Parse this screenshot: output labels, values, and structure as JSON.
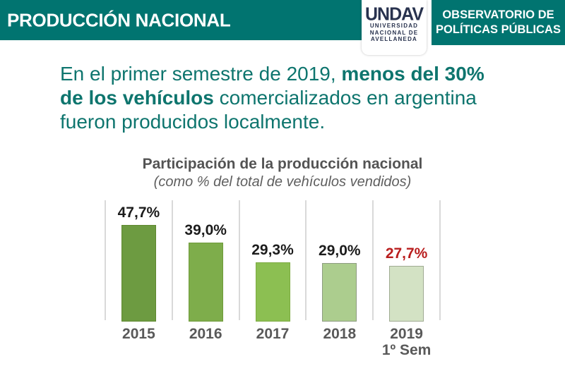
{
  "colors": {
    "teal": "#017470",
    "headline_teal": "#0e756e",
    "gridline": "#d9d9d9"
  },
  "header": {
    "title": "PRODUCCIÓN NACIONAL",
    "observatory_line1": "OBSERVATORIO DE",
    "observatory_line2": "POLÍTICAS PÚBLICAS",
    "logo": {
      "acronym": "UNDAV",
      "line1": "UNIVERSIDAD",
      "line2": "NACIONAL DE",
      "line3": "AVELLANEDA"
    }
  },
  "headline": {
    "part1": "En el primer semestre de 2019, ",
    "part2_bold": "menos del 30% de los vehículos",
    "part3": " comercializados en argentina fueron producidos localmente."
  },
  "chart_data": {
    "type": "bar",
    "title": "Participación de la producción nacional",
    "subtitle": "(como % del total de vehículos vendidos)",
    "categories": [
      "2015",
      "2016",
      "2017",
      "2018",
      "2019"
    ],
    "category_sublabels": [
      "",
      "",
      "",
      "",
      "1º Sem"
    ],
    "values": [
      47.7,
      39.0,
      29.3,
      29.0,
      27.7
    ],
    "value_labels": [
      "47,7%",
      "39,0%",
      "29,3%",
      "29,0%",
      "27,7%"
    ],
    "bar_colors": [
      "#6d9b41",
      "#7ead4b",
      "#8cbf52",
      "#accd8e",
      "#d3e2c4"
    ],
    "bar_border_colors": [
      "#5e882f",
      "#6f9a3a",
      "#7cab41",
      "#8d9c80",
      "#a0ab93"
    ],
    "value_label_colors": [
      "#1c1c1c",
      "#1c1c1c",
      "#1c1c1c",
      "#1c1c1c",
      "#b91e1e"
    ],
    "ylim": [
      0,
      60
    ],
    "grid": "vertical-separators-only",
    "legend": "none"
  }
}
